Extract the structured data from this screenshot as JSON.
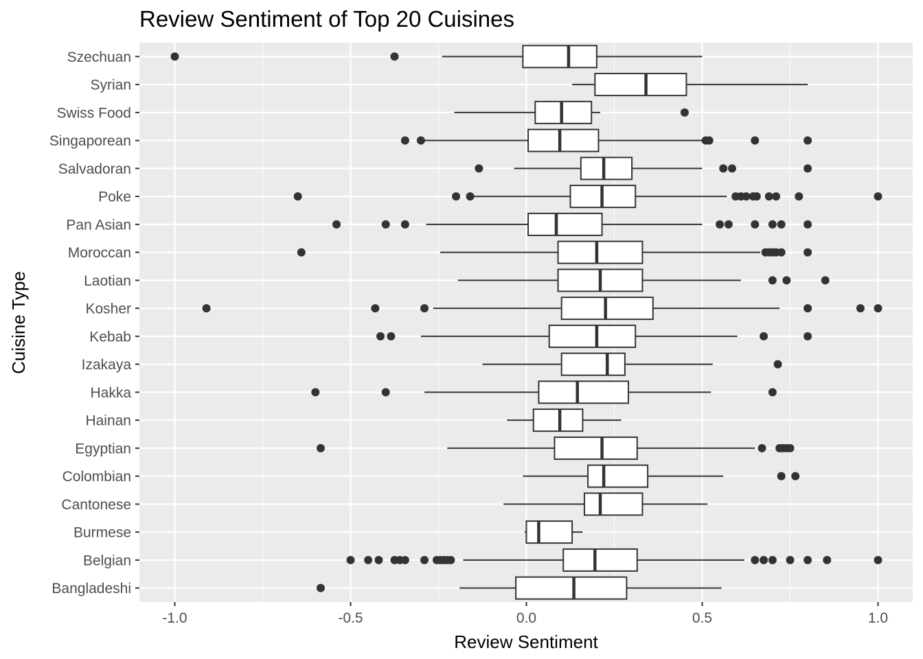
{
  "chart_data": {
    "type": "boxplot",
    "orientation": "horizontal",
    "title": "Review Sentiment of Top 20 Cuisines",
    "xlabel": "Review Sentiment",
    "ylabel": "Cuisine Type",
    "xlim": [
      -1.1,
      1.1
    ],
    "x_ticks": [
      -1.0,
      -0.5,
      0.0,
      0.5,
      1.0
    ],
    "x_tick_labels": [
      "-1.0",
      "-0.5",
      "0.0",
      "0.5",
      "1.0"
    ],
    "grid": true,
    "legend": "none",
    "categories": [
      "Szechuan",
      "Syrian",
      "Swiss Food",
      "Singaporean",
      "Salvadoran",
      "Poke",
      "Pan Asian",
      "Moroccan",
      "Laotian",
      "Kosher",
      "Kebab",
      "Izakaya",
      "Hakka",
      "Hainan",
      "Egyptian",
      "Colombian",
      "Cantonese",
      "Burmese",
      "Belgian",
      "Bangladeshi"
    ],
    "boxes": [
      {
        "category": "Szechuan",
        "whisker_low": -0.24,
        "q1": -0.01,
        "median": 0.12,
        "q3": 0.2,
        "whisker_high": 0.5,
        "outliers": [
          -1.0,
          -0.375
        ]
      },
      {
        "category": "Syrian",
        "whisker_low": 0.13,
        "q1": 0.195,
        "median": 0.34,
        "q3": 0.455,
        "whisker_high": 0.8,
        "outliers": []
      },
      {
        "category": "Swiss Food",
        "whisker_low": -0.205,
        "q1": 0.025,
        "median": 0.1,
        "q3": 0.185,
        "whisker_high": 0.21,
        "outliers": [
          0.45
        ]
      },
      {
        "category": "Singaporean",
        "whisker_low": -0.295,
        "q1": 0.005,
        "median": 0.095,
        "q3": 0.205,
        "whisker_high": 0.505,
        "outliers": [
          -0.345,
          -0.3,
          0.51,
          0.52,
          0.65,
          0.8
        ]
      },
      {
        "category": "Salvadoran",
        "whisker_low": -0.035,
        "q1": 0.155,
        "median": 0.22,
        "q3": 0.3,
        "whisker_high": 0.5,
        "outliers": [
          -0.135,
          0.56,
          0.585,
          0.8
        ]
      },
      {
        "category": "Poke",
        "whisker_low": -0.155,
        "q1": 0.125,
        "median": 0.215,
        "q3": 0.31,
        "whisker_high": 0.57,
        "outliers": [
          -0.65,
          -0.2,
          -0.16,
          0.595,
          0.61,
          0.625,
          0.645,
          0.655,
          0.69,
          0.71,
          0.775,
          1.0
        ]
      },
      {
        "category": "Pan Asian",
        "whisker_low": -0.285,
        "q1": 0.005,
        "median": 0.085,
        "q3": 0.215,
        "whisker_high": 0.5,
        "outliers": [
          -0.54,
          -0.4,
          -0.345,
          0.55,
          0.575,
          0.65,
          0.7,
          0.725,
          0.8
        ]
      },
      {
        "category": "Moroccan",
        "whisker_low": -0.245,
        "q1": 0.09,
        "median": 0.2,
        "q3": 0.33,
        "whisker_high": 0.665,
        "outliers": [
          -0.64,
          0.68,
          0.69,
          0.7,
          0.71,
          0.725,
          0.8
        ]
      },
      {
        "category": "Laotian",
        "whisker_low": -0.195,
        "q1": 0.09,
        "median": 0.21,
        "q3": 0.33,
        "whisker_high": 0.61,
        "outliers": [
          0.7,
          0.74,
          0.85
        ]
      },
      {
        "category": "Kosher",
        "whisker_low": -0.265,
        "q1": 0.1,
        "median": 0.225,
        "q3": 0.36,
        "whisker_high": 0.72,
        "outliers": [
          -0.91,
          -0.43,
          -0.29,
          0.8,
          0.95,
          1.0
        ]
      },
      {
        "category": "Kebab",
        "whisker_low": -0.3,
        "q1": 0.065,
        "median": 0.2,
        "q3": 0.31,
        "whisker_high": 0.6,
        "outliers": [
          -0.415,
          -0.385,
          0.675,
          0.8
        ]
      },
      {
        "category": "Izakaya",
        "whisker_low": -0.125,
        "q1": 0.1,
        "median": 0.23,
        "q3": 0.28,
        "whisker_high": 0.53,
        "outliers": [
          0.715
        ]
      },
      {
        "category": "Hakka",
        "whisker_low": -0.29,
        "q1": 0.035,
        "median": 0.145,
        "q3": 0.29,
        "whisker_high": 0.525,
        "outliers": [
          -0.6,
          -0.4,
          0.7
        ]
      },
      {
        "category": "Hainan",
        "whisker_low": -0.055,
        "q1": 0.02,
        "median": 0.095,
        "q3": 0.16,
        "whisker_high": 0.27,
        "outliers": []
      },
      {
        "category": "Egyptian",
        "whisker_low": -0.225,
        "q1": 0.08,
        "median": 0.215,
        "q3": 0.315,
        "whisker_high": 0.65,
        "outliers": [
          -0.585,
          0.67,
          0.72,
          0.73,
          0.74,
          0.75
        ]
      },
      {
        "category": "Colombian",
        "whisker_low": -0.01,
        "q1": 0.175,
        "median": 0.22,
        "q3": 0.345,
        "whisker_high": 0.56,
        "outliers": [
          0.725,
          0.765
        ]
      },
      {
        "category": "Cantonese",
        "whisker_low": -0.065,
        "q1": 0.165,
        "median": 0.21,
        "q3": 0.33,
        "whisker_high": 0.515,
        "outliers": []
      },
      {
        "category": "Burmese",
        "whisker_low": -0.005,
        "q1": 0.0,
        "median": 0.035,
        "q3": 0.13,
        "whisker_high": 0.16,
        "outliers": []
      },
      {
        "category": "Belgian",
        "whisker_low": -0.18,
        "q1": 0.105,
        "median": 0.195,
        "q3": 0.315,
        "whisker_high": 0.62,
        "outliers": [
          -0.5,
          -0.45,
          -0.42,
          -0.375,
          -0.36,
          -0.345,
          -0.29,
          -0.255,
          -0.245,
          -0.235,
          -0.225,
          -0.215,
          0.65,
          0.675,
          0.7,
          0.75,
          0.8,
          0.855,
          1.0
        ]
      },
      {
        "category": "Bangladeshi",
        "whisker_low": -0.19,
        "q1": -0.03,
        "median": 0.135,
        "q3": 0.285,
        "whisker_high": 0.555,
        "outliers": [
          -0.585
        ]
      }
    ]
  }
}
